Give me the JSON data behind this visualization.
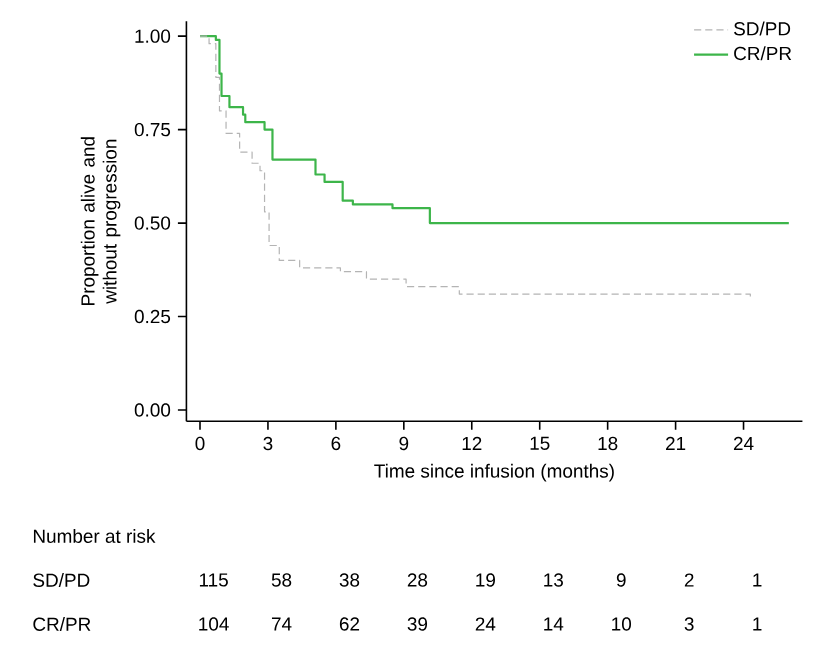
{
  "chart_data": {
    "type": "step",
    "xlabel": "Time since infusion (months)",
    "ylabel": "Proportion alive and without progression",
    "xlim": [
      -0.6,
      26.6
    ],
    "ylim": [
      -0.03,
      1.04
    ],
    "xticks": [
      0,
      3,
      6,
      9,
      12,
      15,
      18,
      21,
      24
    ],
    "yticks": [
      {
        "value": 0,
        "label": "0.00"
      },
      {
        "value": 0.25,
        "label": "0.25"
      },
      {
        "value": 0.5,
        "label": "0.50"
      },
      {
        "value": 0.75,
        "label": "0.75"
      },
      {
        "value": 1,
        "label": "1.00"
      }
    ],
    "legend": "top right",
    "series": [
      {
        "name": "SD/PD",
        "color": "#b4b4b4",
        "line_style": "dashed",
        "x": [
          0,
          0.4,
          0.7,
          0.86,
          1.15,
          1.75,
          2.3,
          2.65,
          2.85,
          3.05,
          3.5,
          4.4,
          6.2,
          7.35,
          9.1,
          11.45,
          24.3
        ],
        "values": [
          1.0,
          0.98,
          0.89,
          0.8,
          0.74,
          0.69,
          0.66,
          0.64,
          0.53,
          0.44,
          0.4,
          0.38,
          0.37,
          0.35,
          0.33,
          0.31,
          0.3
        ]
      },
      {
        "name": "CR/PR",
        "color": "#3db54a",
        "line_style": "solid",
        "x": [
          0,
          0.7,
          0.86,
          0.95,
          1.3,
          1.9,
          2.0,
          2.85,
          3.2,
          5.1,
          5.5,
          6.3,
          6.75,
          8.5,
          10.15,
          26.0
        ],
        "values": [
          1.0,
          0.99,
          0.9,
          0.84,
          0.81,
          0.79,
          0.77,
          0.75,
          0.67,
          0.63,
          0.61,
          0.56,
          0.55,
          0.54,
          0.5,
          0.5
        ]
      }
    ],
    "annotations": [
      "Number at risk",
      "SD/PD",
      "115",
      "58",
      "38",
      "28",
      "19",
      "13",
      "9",
      "2",
      "1",
      "CR/PR",
      "104",
      "74",
      "62",
      "39",
      "24",
      "14",
      "10",
      "3",
      "1"
    ]
  }
}
